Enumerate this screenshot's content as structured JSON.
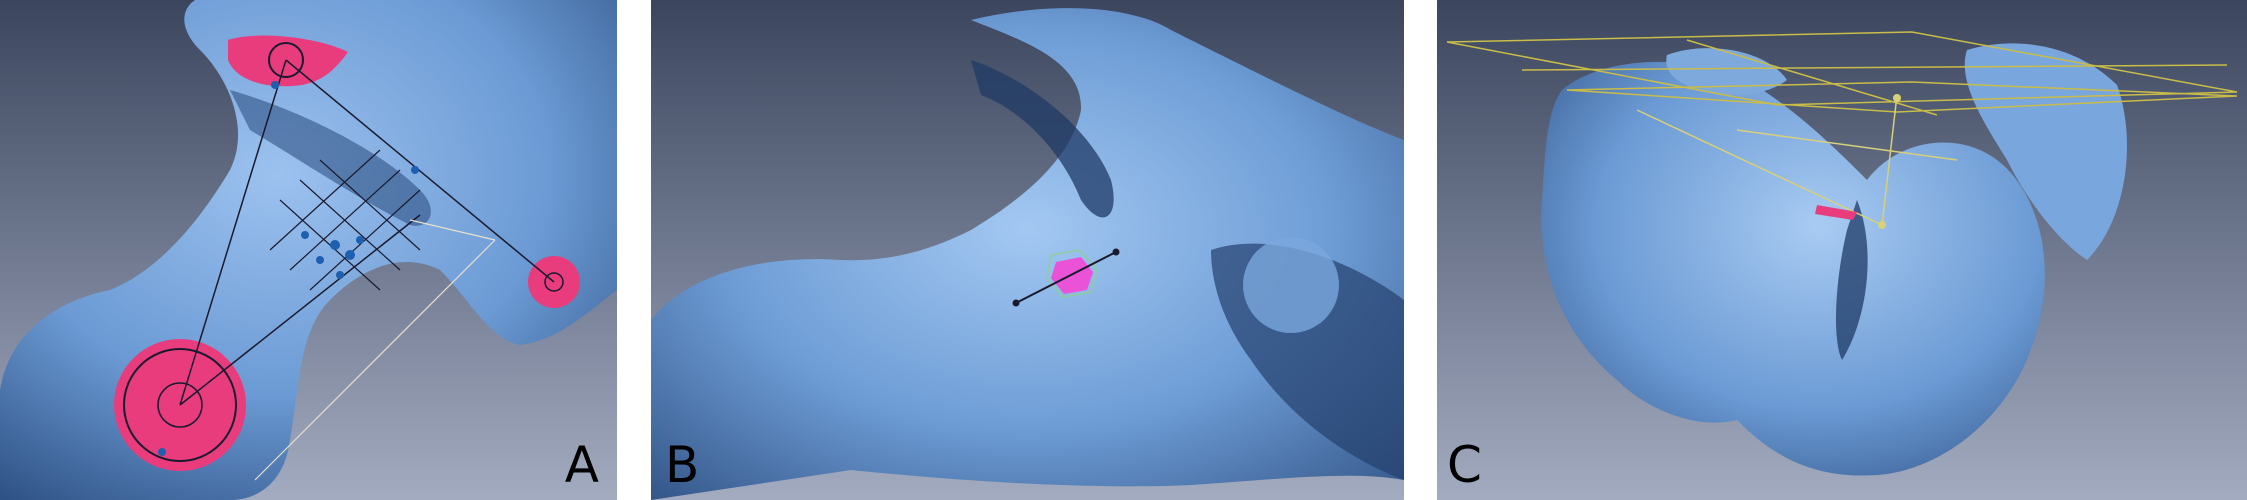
{
  "panels": [
    {
      "label": "A"
    },
    {
      "label": "B"
    },
    {
      "label": "C"
    }
  ],
  "colors": {
    "background_top": "#3f4a63",
    "background_bottom": "#a6adc2",
    "bone": "#6f9fd8",
    "bone_shadow": "#274672",
    "bone_highlight": "#a8cbf2",
    "marker": "#e83c7c",
    "measurement_line": "#1a1a2e",
    "guide_line": "#d8d07a",
    "guide_box": "#bfb34a"
  }
}
